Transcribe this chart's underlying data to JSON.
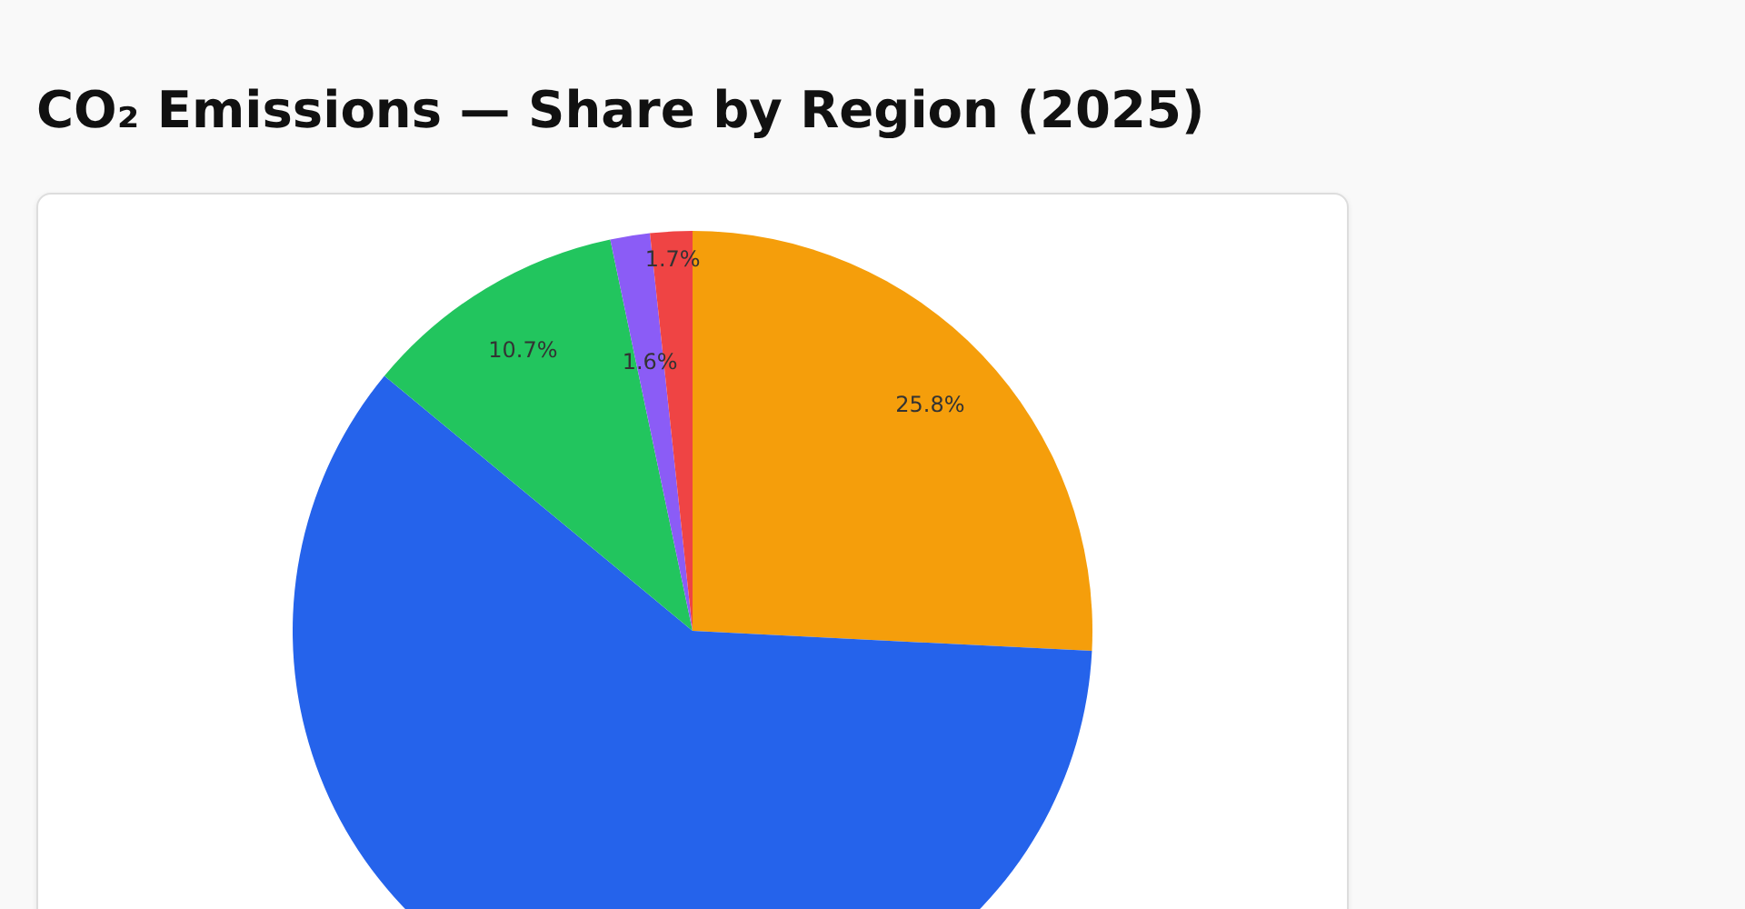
{
  "chart_data": {
    "type": "pie",
    "title": "CO₂ Emissions — Share by Region (2025)",
    "categories": [
      null,
      null,
      null,
      null,
      null
    ],
    "values": [
      25.8,
      60.2,
      10.7,
      1.6,
      1.7
    ],
    "colors": [
      "#f59e0b",
      "#2563eb",
      "#22c55e",
      "#8b5cf6",
      "#ef4444"
    ],
    "value_labels": [
      "25.8%",
      null,
      "10.7%",
      "1.6%",
      "1.7%"
    ]
  }
}
